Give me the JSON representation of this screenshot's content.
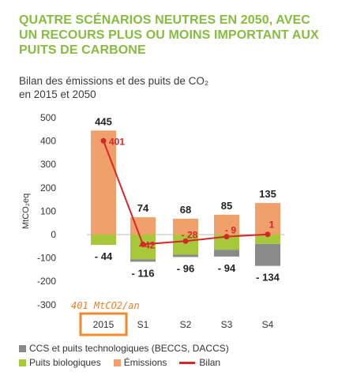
{
  "header": {
    "title": "QUATRE SCÉNARIOS NEUTRES EN 2050, AVEC UN RECOURS PLUS OU MOINS IMPORTANT AUX PUITS DE CARBONE",
    "subtitle_line1": "Bilan des émissions et des puits de CO₂",
    "subtitle_line2": "en 2015 et 2050"
  },
  "annotation": "401 MtCO2/an",
  "colors": {
    "title": "#86bc3f",
    "emissions": "#f0a06a",
    "biological": "#a7c83a",
    "technological": "#8a8a8a",
    "balance": "#d7262b",
    "highlight_box": "#f08a2c",
    "annotation": "#e8812a"
  },
  "chart_data": {
    "type": "bar",
    "ylabel": "MtCO₂eq",
    "ylim": [
      -300,
      500
    ],
    "yticks": [
      500,
      400,
      300,
      200,
      100,
      0,
      -100,
      -200,
      -300
    ],
    "categories": [
      "2015",
      "S1",
      "S2",
      "S3",
      "S4"
    ],
    "highlight_category": "2015",
    "series": [
      {
        "name": "Émissions",
        "key": "emissions",
        "values": [
          445,
          74,
          68,
          85,
          135
        ]
      },
      {
        "name": "Puits biologiques",
        "key": "biological",
        "values": [
          -44,
          -106,
          -86,
          -65,
          -40
        ]
      },
      {
        "name": "CCS et puits technologiques (BECCS, DACCS)",
        "key": "technological",
        "values": [
          0,
          -10,
          -10,
          -29,
          -94
        ]
      },
      {
        "name": "Bilan",
        "key": "balance",
        "type": "line",
        "values": [
          401,
          -42,
          -28,
          -9,
          1
        ]
      }
    ],
    "top_labels": [
      "445",
      "74",
      "68",
      "85",
      "135"
    ],
    "bottom_labels": [
      "- 44",
      "- 116",
      "- 96",
      "- 94",
      "- 134"
    ],
    "balance_labels": [
      "401",
      "- 42",
      "- 28",
      "- 9",
      "1"
    ],
    "grid": false,
    "legend_position": "bottom"
  },
  "legend": {
    "technological": "CCS et puits technologiques (BECCS, DACCS)",
    "biological": "Puits biologiques",
    "emissions": "Émissions",
    "balance": "Bilan"
  }
}
